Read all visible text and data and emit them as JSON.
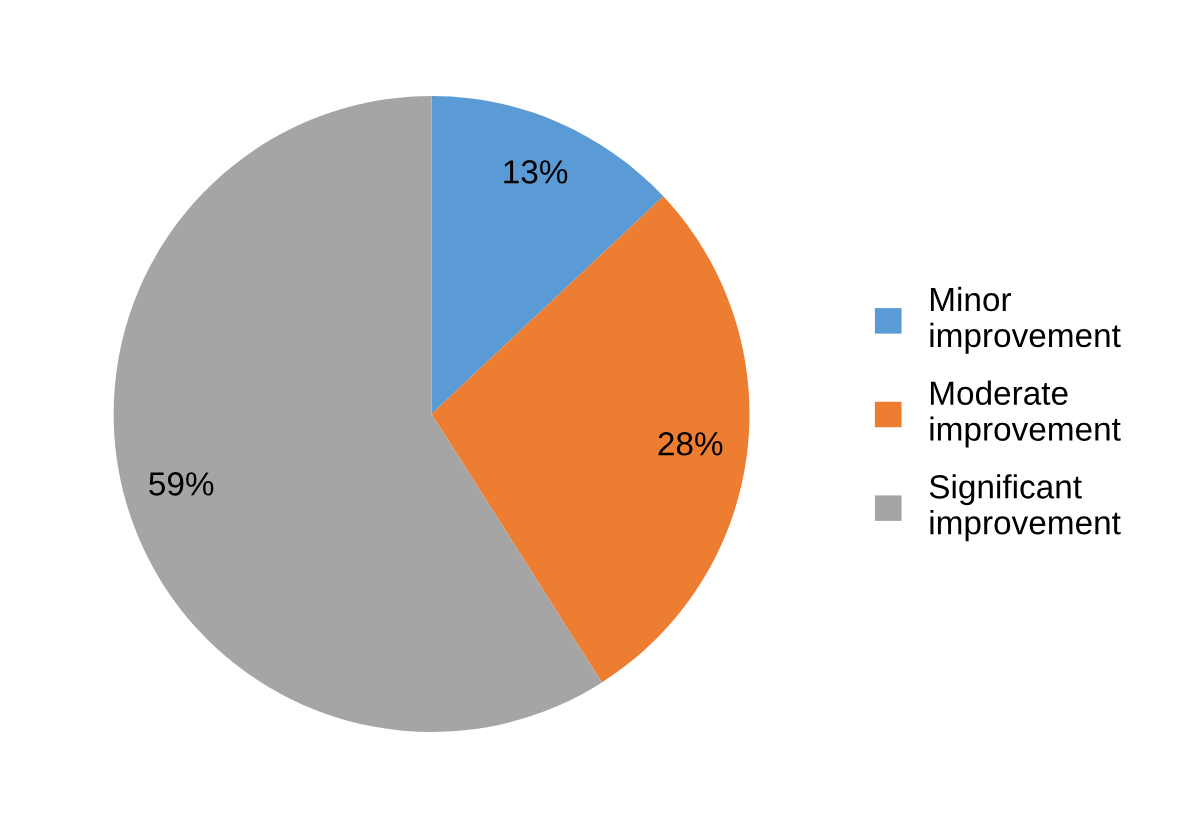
{
  "chart_data": {
    "type": "pie",
    "categories": [
      "Minor improvement",
      "Moderate improvement",
      "Significant improvement"
    ],
    "values": [
      13,
      28,
      59
    ],
    "colors": [
      "#5b9bd5",
      "#ed7d31",
      "#a5a5a5"
    ],
    "value_labels": [
      "13%",
      "28%",
      "59%"
    ],
    "legend": "right"
  }
}
